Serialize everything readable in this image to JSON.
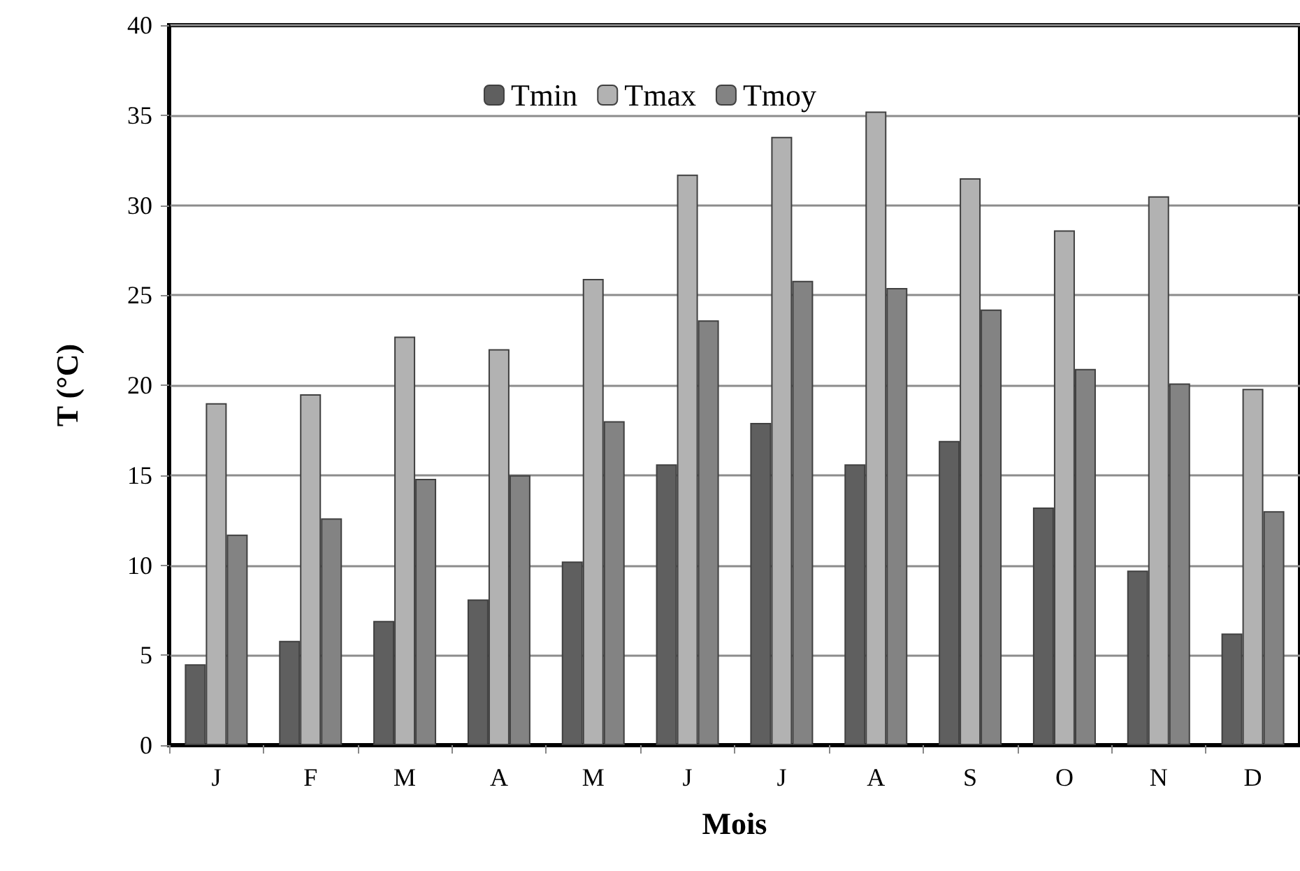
{
  "chart_data": {
    "type": "bar",
    "xlabel": "Mois",
    "ylabel": "T (°C)",
    "categories": [
      "J",
      "F",
      "M",
      "A",
      "M",
      "J",
      "J",
      "A",
      "S",
      "O",
      "N",
      "D"
    ],
    "series": [
      {
        "name": "Tmin",
        "color": "#5f5f5f",
        "values": [
          4.5,
          5.8,
          6.9,
          8.1,
          10.2,
          15.6,
          17.9,
          15.6,
          16.9,
          13.2,
          9.7,
          6.2
        ]
      },
      {
        "name": "Tmax",
        "color": "#b2b2b2",
        "values": [
          19.0,
          19.5,
          22.7,
          22.0,
          25.9,
          31.7,
          33.8,
          35.2,
          31.5,
          28.6,
          30.5,
          19.8
        ]
      },
      {
        "name": "Tmoy",
        "color": "#838383",
        "values": [
          11.7,
          12.6,
          14.8,
          15.0,
          18.0,
          23.6,
          25.8,
          25.4,
          24.2,
          20.9,
          20.1,
          13.0
        ]
      }
    ],
    "ylim": [
      0,
      40
    ],
    "yticks": [
      0,
      5,
      10,
      15,
      20,
      25,
      30,
      35,
      40
    ],
    "grid": "y",
    "legend": "top"
  }
}
